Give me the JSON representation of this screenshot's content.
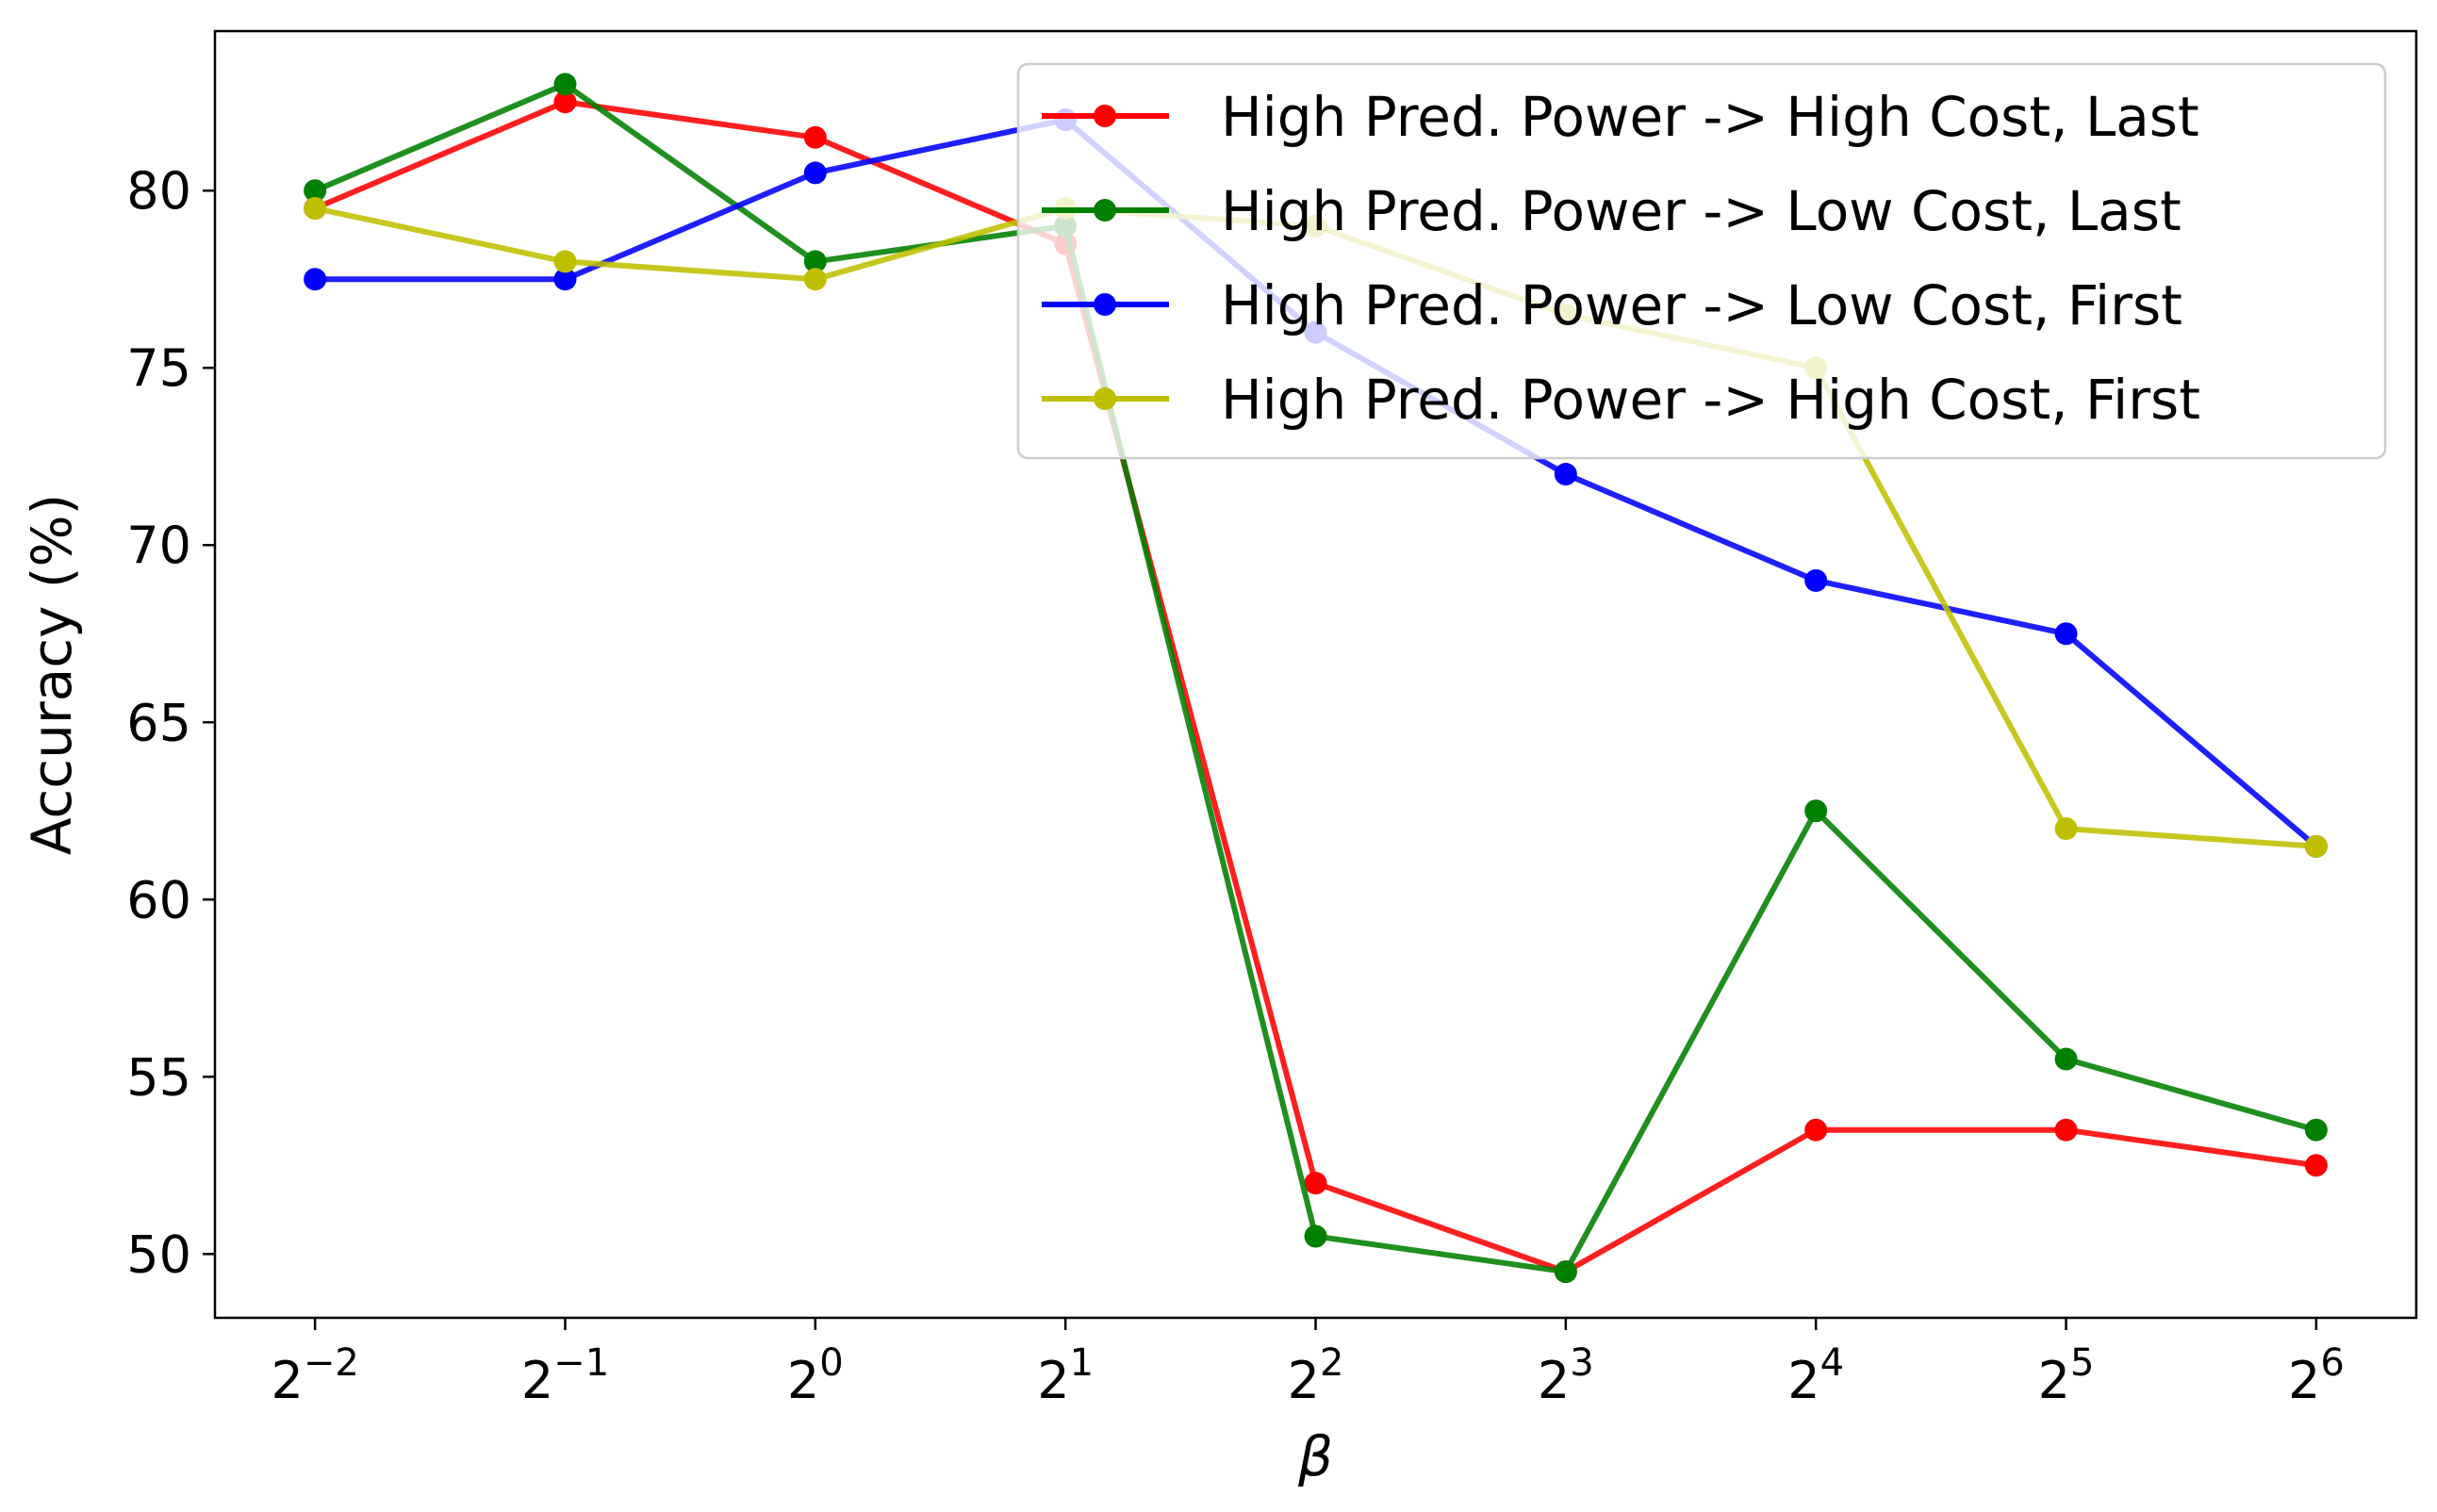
{
  "chart_data": {
    "type": "line",
    "title": "",
    "xlabel": "β",
    "ylabel": "Accuracy (%)",
    "x_tick_base": "2",
    "x_exponents": [
      "−2",
      "−1",
      "0",
      "1",
      "2",
      "3",
      "4",
      "5",
      "6"
    ],
    "x": [
      -2,
      -1,
      0,
      1,
      2,
      3,
      4,
      5,
      6
    ],
    "x_scale": "log2",
    "yticks": [
      50,
      55,
      60,
      65,
      70,
      75,
      80
    ],
    "ylim": [
      48.2,
      84.5
    ],
    "grid": false,
    "legend_position": "top-right",
    "series": [
      {
        "name": "High Pred. Power -> High Cost, Last",
        "color": "#ff0000",
        "values": [
          79.5,
          82.5,
          81.5,
          78.5,
          52.0,
          49.5,
          53.5,
          53.5,
          52.5
        ]
      },
      {
        "name": "High Pred. Power -> Low Cost, Last",
        "color": "#008000",
        "values": [
          80.0,
          83.0,
          78.0,
          79.0,
          50.5,
          49.5,
          62.5,
          55.5,
          53.5
        ]
      },
      {
        "name": "High Pred. Power -> Low Cost, First",
        "color": "#0000ff",
        "values": [
          77.5,
          77.5,
          80.5,
          82.0,
          76.0,
          72.0,
          69.0,
          67.5,
          61.5
        ]
      },
      {
        "name": "High Pred. Power -> High Cost, First",
        "color": "#bfbf00",
        "values": [
          79.5,
          78.0,
          77.5,
          79.5,
          79.0,
          76.5,
          75.0,
          62.0,
          61.5
        ]
      }
    ]
  }
}
